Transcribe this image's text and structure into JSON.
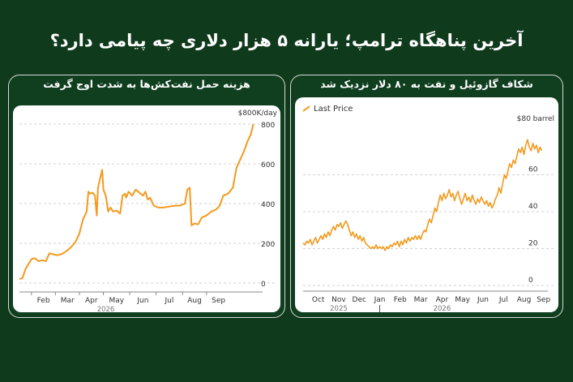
{
  "headline": "آخرین پناهگاه ترامپ؛ یارانه ۵ هزار دلاری چه پیامی دارد؟",
  "colors": {
    "background": "#0f3a1c",
    "line": "#f39a1e",
    "axis_text": "#333333",
    "grid": "#d0d0d0"
  },
  "left_panel": {
    "title": "هزینه حمل نفت‌کش‌ها به شدت اوج گرفت"
  },
  "right_panel": {
    "title": "شکاف گازوئیل و نفت به ۸۰ دلار نزدیک شد"
  },
  "chart_data": [
    {
      "type": "line",
      "unit_label": "$800K/day",
      "x_ticks": [
        "Feb",
        "Mar",
        "Apr",
        "May",
        "Jun",
        "Jul",
        "Aug",
        "Sep"
      ],
      "year_label": "2026",
      "ylim": [
        0,
        800
      ],
      "y_ticks": [
        0,
        200,
        400,
        600,
        800
      ],
      "grid": true,
      "series": [
        {
          "values": [
            [
              0,
              20
            ],
            [
              0.25,
              25
            ],
            [
              0.5,
              70
            ],
            [
              0.8,
              100
            ],
            [
              1.0,
              120
            ],
            [
              1.3,
              125
            ],
            [
              1.6,
              110
            ],
            [
              1.9,
              115
            ],
            [
              2.2,
              110
            ],
            [
              2.5,
              150
            ],
            [
              2.8,
              145
            ],
            [
              3.1,
              140
            ],
            [
              3.5,
              145
            ],
            [
              3.9,
              160
            ],
            [
              4.3,
              180
            ],
            [
              4.7,
              210
            ],
            [
              5.0,
              250
            ],
            [
              5.3,
              320
            ],
            [
              5.6,
              360
            ],
            [
              5.75,
              460
            ],
            [
              5.9,
              450
            ],
            [
              6.1,
              455
            ],
            [
              6.3,
              440
            ],
            [
              6.45,
              340
            ],
            [
              6.55,
              480
            ],
            [
              6.8,
              545
            ],
            [
              6.9,
              570
            ],
            [
              7.0,
              470
            ],
            [
              7.2,
              440
            ],
            [
              7.4,
              360
            ],
            [
              7.6,
              380
            ],
            [
              7.8,
              360
            ],
            [
              8.1,
              365
            ],
            [
              8.4,
              350
            ],
            [
              8.6,
              440
            ],
            [
              8.8,
              450
            ],
            [
              8.9,
              430
            ],
            [
              9.1,
              460
            ],
            [
              9.4,
              440
            ],
            [
              9.7,
              470
            ],
            [
              10.0,
              455
            ],
            [
              10.3,
              440
            ],
            [
              10.5,
              460
            ],
            [
              10.7,
              420
            ],
            [
              10.9,
              430
            ],
            [
              11.2,
              390
            ],
            [
              11.6,
              380
            ],
            [
              12.0,
              380
            ],
            [
              12.5,
              385
            ],
            [
              13.0,
              390
            ],
            [
              13.4,
              390
            ],
            [
              13.8,
              400
            ],
            [
              14.0,
              470
            ],
            [
              14.2,
              480
            ],
            [
              14.35,
              290
            ],
            [
              14.6,
              300
            ],
            [
              14.9,
              295
            ],
            [
              15.2,
              330
            ],
            [
              15.6,
              340
            ],
            [
              16.0,
              360
            ],
            [
              16.4,
              370
            ],
            [
              16.7,
              390
            ],
            [
              17.0,
              440
            ],
            [
              17.4,
              450
            ],
            [
              17.8,
              480
            ],
            [
              18.1,
              580
            ],
            [
              18.4,
              620
            ],
            [
              18.7,
              660
            ],
            [
              19.0,
              710
            ],
            [
              19.3,
              750
            ],
            [
              19.5,
              800
            ]
          ]
        }
      ]
    },
    {
      "type": "line",
      "unit_label": "$80 barrel",
      "legend": "Last Price",
      "legend_position": "top-left",
      "x_ticks": [
        "Oct",
        "Nov",
        "Dec",
        "Jan",
        "Feb",
        "Mar",
        "Apr",
        "May",
        "Jun",
        "Jul",
        "Aug",
        "Sep"
      ],
      "year_labels": [
        "2025",
        "2026"
      ],
      "ylim": [
        0,
        80
      ],
      "y_ticks": [
        0,
        20,
        40,
        60
      ],
      "grid": true,
      "series": [
        {
          "name": "Last Price",
          "values": [
            [
              0,
              23
            ],
            [
              0.2,
              22
            ],
            [
              0.4,
              24
            ],
            [
              0.6,
              23
            ],
            [
              0.8,
              25
            ],
            [
              1.0,
              22
            ],
            [
              1.2,
              24
            ],
            [
              1.4,
              26
            ],
            [
              1.6,
              23
            ],
            [
              1.8,
              25
            ],
            [
              2.0,
              27
            ],
            [
              2.2,
              25
            ],
            [
              2.4,
              28
            ],
            [
              2.6,
              26
            ],
            [
              2.8,
              29
            ],
            [
              3.0,
              27
            ],
            [
              3.2,
              30
            ],
            [
              3.4,
              32
            ],
            [
              3.6,
              30
            ],
            [
              3.8,
              33
            ],
            [
              4.0,
              32
            ],
            [
              4.2,
              34
            ],
            [
              4.4,
              31
            ],
            [
              4.6,
              33
            ],
            [
              4.8,
              35
            ],
            [
              5.0,
              33
            ],
            [
              5.2,
              30
            ],
            [
              5.4,
              27
            ],
            [
              5.6,
              29
            ],
            [
              5.8,
              26
            ],
            [
              6.0,
              28
            ],
            [
              6.2,
              25
            ],
            [
              6.4,
              27
            ],
            [
              6.6,
              24
            ],
            [
              6.8,
              26
            ],
            [
              7.0,
              23
            ],
            [
              7.2,
              22
            ],
            [
              7.4,
              21
            ],
            [
              7.6,
              20
            ],
            [
              7.8,
              21
            ],
            [
              8.0,
              20
            ],
            [
              8.2,
              22
            ],
            [
              8.4,
              20
            ],
            [
              8.6,
              21
            ],
            [
              8.8,
              20
            ],
            [
              9.0,
              21
            ],
            [
              9.2,
              19
            ],
            [
              9.4,
              21
            ],
            [
              9.6,
              20
            ],
            [
              9.8,
              22
            ],
            [
              10.0,
              21
            ],
            [
              10.2,
              23
            ],
            [
              10.4,
              22
            ],
            [
              10.6,
              24
            ],
            [
              10.8,
              21
            ],
            [
              11.0,
              24
            ],
            [
              11.2,
              22
            ],
            [
              11.4,
              25
            ],
            [
              11.6,
              23
            ],
            [
              11.8,
              26
            ],
            [
              12.0,
              24
            ],
            [
              12.2,
              26
            ],
            [
              12.4,
              25
            ],
            [
              12.6,
              27
            ],
            [
              12.8,
              25
            ],
            [
              13.0,
              27
            ],
            [
              13.2,
              25
            ],
            [
              13.4,
              28
            ],
            [
              13.6,
              30
            ],
            [
              13.8,
              29
            ],
            [
              14.0,
              33
            ],
            [
              14.2,
              36
            ],
            [
              14.4,
              34
            ],
            [
              14.6,
              38
            ],
            [
              14.8,
              42
            ],
            [
              15.0,
              40
            ],
            [
              15.2,
              45
            ],
            [
              15.4,
              49
            ],
            [
              15.6,
              46
            ],
            [
              15.8,
              50
            ],
            [
              16.0,
              47
            ],
            [
              16.2,
              49
            ],
            [
              16.4,
              52
            ],
            [
              16.6,
              48
            ],
            [
              16.8,
              50
            ],
            [
              17.0,
              46
            ],
            [
              17.2,
              49
            ],
            [
              17.4,
              51
            ],
            [
              17.6,
              47
            ],
            [
              17.8,
              44
            ],
            [
              18.0,
              47
            ],
            [
              18.2,
              50
            ],
            [
              18.4,
              46
            ],
            [
              18.6,
              48
            ],
            [
              18.8,
              45
            ],
            [
              19.0,
              49
            ],
            [
              19.2,
              46
            ],
            [
              19.4,
              44
            ],
            [
              19.6,
              47
            ],
            [
              19.8,
              45
            ],
            [
              20.0,
              48
            ],
            [
              20.2,
              46
            ],
            [
              20.4,
              44
            ],
            [
              20.6,
              46
            ],
            [
              20.8,
              43
            ],
            [
              21.0,
              45
            ],
            [
              21.2,
              42
            ],
            [
              21.4,
              44
            ],
            [
              21.6,
              47
            ],
            [
              21.8,
              49
            ],
            [
              22.0,
              53
            ],
            [
              22.2,
              50
            ],
            [
              22.4,
              55
            ],
            [
              22.6,
              60
            ],
            [
              22.8,
              58
            ],
            [
              23.0,
              62
            ],
            [
              23.2,
              66
            ],
            [
              23.4,
              64
            ],
            [
              23.6,
              68
            ],
            [
              23.8,
              66
            ],
            [
              24.0,
              70
            ],
            [
              24.2,
              74
            ],
            [
              24.4,
              72
            ],
            [
              24.6,
              75
            ],
            [
              24.8,
              71
            ],
            [
              25.0,
              76
            ],
            [
              25.2,
              79
            ],
            [
              25.4,
              75
            ],
            [
              25.6,
              73
            ],
            [
              25.8,
              77
            ],
            [
              26.0,
              74
            ],
            [
              26.2,
              76
            ],
            [
              26.4,
              72
            ],
            [
              26.6,
              75
            ],
            [
              26.8,
              73
            ]
          ]
        }
      ]
    }
  ]
}
